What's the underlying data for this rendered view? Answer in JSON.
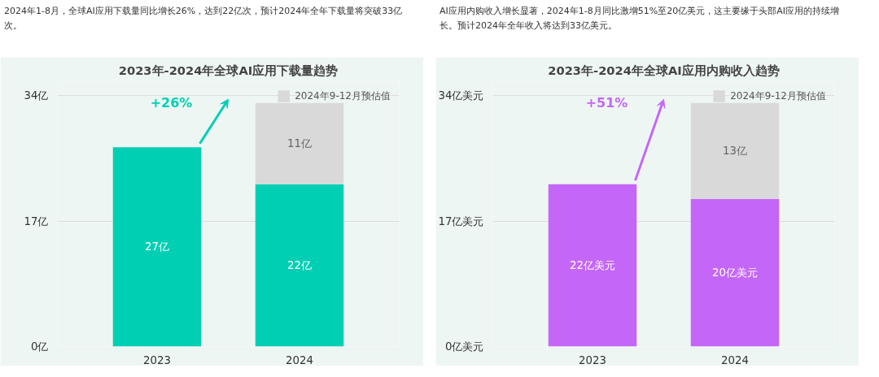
{
  "chart_data": [
    {
      "type": "bar",
      "title": "2023年-2024年全球AI应用下载量趋势",
      "stacked": true,
      "categories": [
        "2023",
        "2024"
      ],
      "series": [
        {
          "color": "#00cfb4",
          "values": [
            27,
            22
          ],
          "value_labels": [
            "27亿",
            "22亿"
          ]
        },
        {
          "name": "2024年9-12月预估值",
          "color": "#d9d9d9",
          "values": [
            null,
            11
          ],
          "value_labels": [
            null,
            "11亿"
          ]
        }
      ],
      "ylim": [
        0,
        36
      ],
      "yticks": [
        {
          "value": 0,
          "label": "0亿"
        },
        {
          "value": 17,
          "label": "17亿"
        },
        {
          "value": 34,
          "label": "34亿"
        }
      ],
      "grid": "y",
      "legend": "top right",
      "annotations": [
        "2024年1-8月，全球AI应用下载量同比增长26%，达到22亿次，预计2024年全年下载量将突破33亿次。",
        "+26%"
      ]
    },
    {
      "type": "bar",
      "title": "2023年-2024年全球AI应用内购收入趋势",
      "stacked": true,
      "categories": [
        "2023",
        "2024"
      ],
      "series": [
        {
          "color": "#c466f7",
          "values": [
            22,
            20
          ],
          "value_labels": [
            "22亿美元",
            "20亿美元"
          ]
        },
        {
          "name": "2024年9-12月预估值",
          "color": "#d9d9d9",
          "values": [
            null,
            13
          ],
          "value_labels": [
            null,
            "13亿"
          ]
        }
      ],
      "ylim": [
        0,
        36
      ],
      "yticks": [
        {
          "value": 0,
          "label": "0亿美元"
        },
        {
          "value": 17,
          "label": "17亿美元"
        },
        {
          "value": 34,
          "label": "34亿美元"
        }
      ],
      "grid": "y",
      "legend": "top right",
      "annotations": [
        "AI应用内购收入增长显著，2024年1-8月同比激增51%至20亿美元，这主要缘于头部AI应用的持续增长。预计2024年全年收入将达到33亿美元。",
        "+51%"
      ]
    }
  ]
}
